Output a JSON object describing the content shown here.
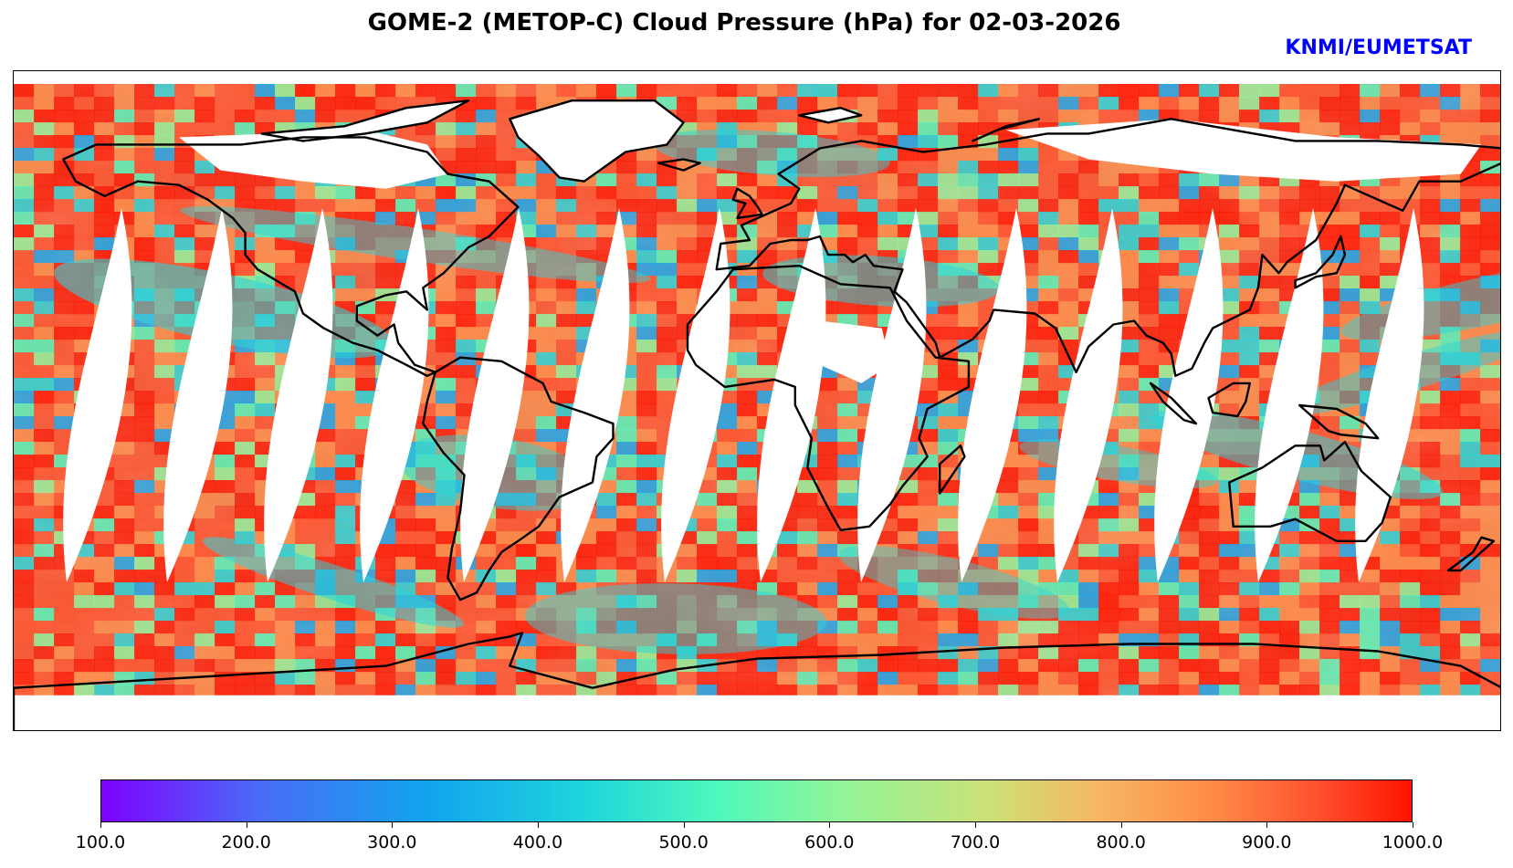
{
  "title": "GOME-2 (METOP-C) Cloud Pressure (hPa) for 02-03-2026",
  "credit": {
    "text": "KNMI/EUMETSAT",
    "color": "#0000ff"
  },
  "map": {
    "projection": "equirectangular",
    "variable": "Cloud Pressure",
    "units": "hPa",
    "coastline_color": "#000000",
    "gap_color": "#ffffff"
  },
  "colorbar": {
    "vmin": 100.0,
    "vmax": 1000.0,
    "colormap": "rainbow",
    "ticks": [
      "100.0",
      "200.0",
      "300.0",
      "400.0",
      "500.0",
      "600.0",
      "700.0",
      "800.0",
      "900.0",
      "1000.0"
    ],
    "colors": [
      "#7f00ff",
      "#4a6cf7",
      "#12a4ee",
      "#1fd6dc",
      "#4ef8bc",
      "#8ef59a",
      "#cde075",
      "#f6b764",
      "#ff8a47",
      "#ff4f2c",
      "#ff1400"
    ]
  }
}
